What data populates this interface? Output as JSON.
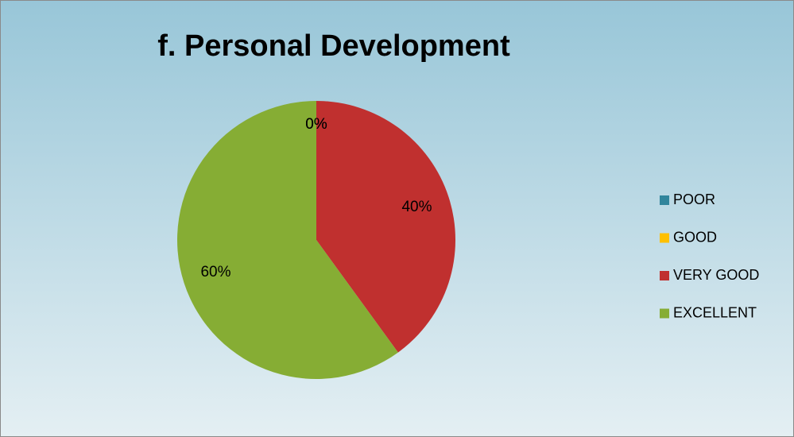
{
  "chart_data": {
    "type": "pie",
    "title": "f. Personal Development",
    "categories": [
      "POOR",
      "GOOD",
      "VERY GOOD",
      "EXCELLENT"
    ],
    "values": [
      0,
      0,
      40,
      60
    ],
    "value_labels": [
      "0%",
      "0%",
      "40%",
      "60%"
    ],
    "colors": [
      "#31859c",
      "#ffc000",
      "#c0302f",
      "#86ad34"
    ],
    "legend": "right"
  }
}
